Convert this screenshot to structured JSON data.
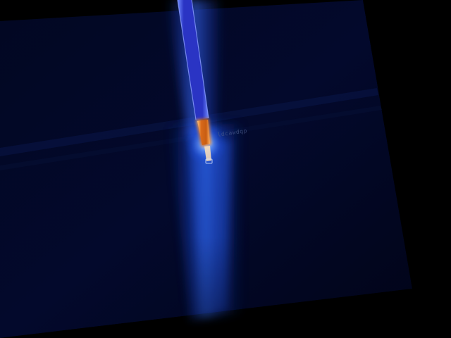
{
  "scene": {
    "description_label": "",
    "faint_text": "ldcawdqp"
  },
  "colors": {
    "background": "#000000",
    "panel": "#030a2a",
    "panel_deep": "#01051a",
    "beam_core": "#2f6bff",
    "beam_glow": "#1746d8",
    "rod": "#3a44d8",
    "rod_edge": "#7a8cff",
    "tip_orange": "#e07a1c",
    "tip_hot": "#ffc27a",
    "halo": "#9fc6ff"
  },
  "icons": {
    "probe": "probe-rod-icon"
  }
}
